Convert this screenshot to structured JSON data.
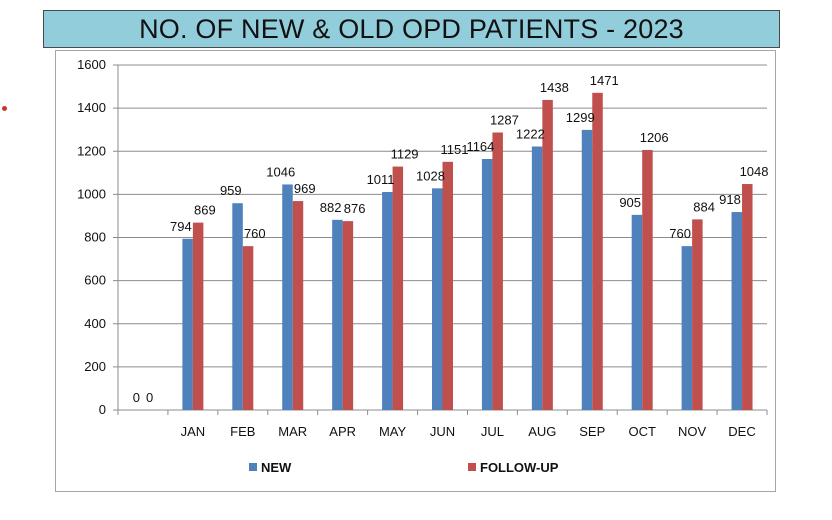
{
  "chart_data": {
    "type": "bar",
    "title": "NO. OF NEW & OLD OPD PATIENTS - 2023",
    "xlabel": "",
    "ylabel": "",
    "categories": [
      "",
      "JAN",
      "FEB",
      "MAR",
      "APR",
      "MAY",
      "JUN",
      "JUL",
      "AUG",
      "SEP",
      "OCT",
      "NOV",
      "DEC"
    ],
    "series": [
      {
        "name": "NEW",
        "color": "#4f81bd",
        "values": [
          0,
          794,
          959,
          1046,
          882,
          1011,
          1028,
          1164,
          1222,
          1299,
          905,
          760,
          918
        ]
      },
      {
        "name": "FOLLOW-UP",
        "color": "#c0504d",
        "values": [
          0,
          869,
          760,
          969,
          876,
          1129,
          1151,
          1287,
          1438,
          1471,
          1206,
          884,
          1048
        ]
      }
    ],
    "ylim": [
      0,
      1600
    ],
    "yticks": [
      0,
      200,
      400,
      600,
      800,
      1000,
      1200,
      1400,
      1600
    ],
    "grid": true,
    "legend": "bottom"
  }
}
